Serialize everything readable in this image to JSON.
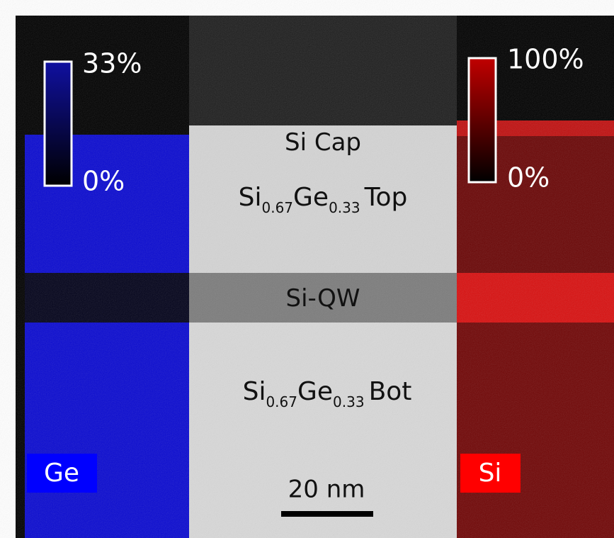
{
  "ge_map": {
    "label": "Ge",
    "scale_max": "33%",
    "scale_min": "0%"
  },
  "si_map": {
    "label": "Si",
    "scale_max": "100%",
    "scale_min": "0%"
  },
  "layers": [
    {
      "parts": [
        "Si Cap"
      ]
    },
    {
      "parts": [
        "Si",
        "0.67",
        "Ge",
        "0.33",
        "Top"
      ]
    },
    {
      "parts": [
        "Si-QW"
      ]
    },
    {
      "parts": [
        "Si",
        "0.67",
        "Ge",
        "0.33",
        "Bot"
      ]
    }
  ],
  "scale_bar": "20 nm"
}
